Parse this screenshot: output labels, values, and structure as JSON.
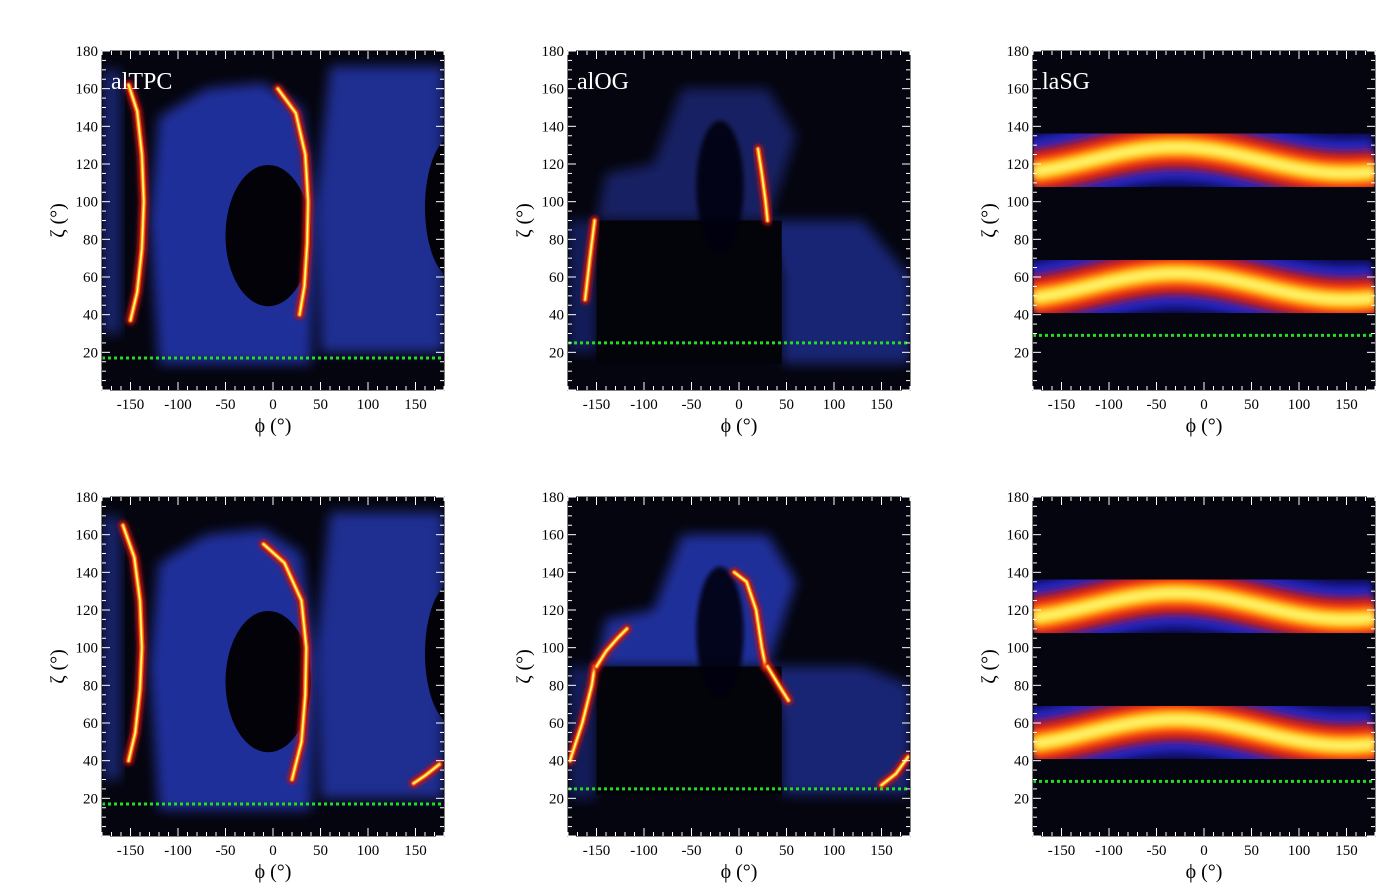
{
  "chart_data": [
    {
      "type": "heatmap",
      "title": "alTPC",
      "xlabel": "ϕ (°)",
      "ylabel": "ζ (°)",
      "xlim": [
        -180,
        180
      ],
      "ylim": [
        0,
        180
      ],
      "xticks": [
        -150,
        -100,
        -50,
        0,
        50,
        100,
        150
      ],
      "yticks": [
        20,
        40,
        60,
        80,
        100,
        120,
        140,
        160,
        180
      ],
      "colormap": "black-blue-red-yellow-white",
      "observer_line_zeta": 17,
      "observer_line_color": "#22dd22",
      "caustics": [
        {
          "x": [
            -150,
            -143,
            -138,
            -136,
            -138,
            -143,
            -152
          ],
          "y": [
            37,
            52,
            75,
            100,
            125,
            148,
            162
          ]
        },
        {
          "x": [
            28,
            33,
            36,
            37,
            34,
            24,
            5
          ],
          "y": [
            40,
            55,
            78,
            100,
            125,
            147,
            160
          ]
        }
      ]
    },
    {
      "type": "heatmap",
      "title": "alOG",
      "xlabel": "ϕ (°)",
      "ylabel": "ζ (°)",
      "xlim": [
        -180,
        180
      ],
      "ylim": [
        0,
        180
      ],
      "xticks": [
        -150,
        -100,
        -50,
        0,
        50,
        100,
        150
      ],
      "yticks": [
        20,
        40,
        60,
        80,
        100,
        120,
        140,
        160,
        180
      ],
      "colormap": "black-blue-red-yellow-white",
      "observer_line_zeta": 25,
      "observer_line_color": "#22dd22",
      "caustics": [
        {
          "x": [
            -162,
            -157,
            -152
          ],
          "y": [
            48,
            70,
            90
          ]
        },
        {
          "x": [
            20,
            24,
            28,
            30
          ],
          "y": [
            128,
            115,
            100,
            90
          ]
        }
      ]
    },
    {
      "type": "heatmap",
      "title": "laSG",
      "xlabel": "ϕ (°)",
      "ylabel": "ζ (°)",
      "xlim": [
        -180,
        180
      ],
      "ylim": [
        0,
        180
      ],
      "xticks": [
        -150,
        -100,
        -50,
        0,
        50,
        100,
        150
      ],
      "yticks": [
        20,
        40,
        60,
        80,
        100,
        120,
        140,
        160,
        180
      ],
      "colormap": "black-blue-red-yellow-white",
      "observer_line_zeta": 29,
      "observer_line_color": "#22dd22",
      "bands": [
        {
          "center_zeta": 55,
          "amplitude": 7,
          "phase_peak_phi": -30
        },
        {
          "center_zeta": 122,
          "amplitude": 7,
          "phase_peak_phi": -30
        }
      ]
    },
    {
      "type": "heatmap",
      "title": "",
      "xlabel": "ϕ (°)",
      "ylabel": "ζ (°)",
      "xlim": [
        -180,
        180
      ],
      "ylim": [
        0,
        180
      ],
      "xticks": [
        -150,
        -100,
        -50,
        0,
        50,
        100,
        150
      ],
      "yticks": [
        20,
        40,
        60,
        80,
        100,
        120,
        140,
        160,
        180
      ],
      "colormap": "black-blue-red-yellow-white",
      "observer_line_zeta": 17,
      "observer_line_color": "#22dd22",
      "caustics": [
        {
          "x": [
            -152,
            -145,
            -140,
            -138,
            -140,
            -146,
            -158
          ],
          "y": [
            40,
            55,
            78,
            100,
            125,
            148,
            165
          ]
        },
        {
          "x": [
            20,
            30,
            34,
            35,
            30,
            12,
            -10
          ],
          "y": [
            30,
            50,
            75,
            100,
            125,
            145,
            155
          ]
        },
        {
          "x": [
            148,
            160,
            175
          ],
          "y": [
            28,
            32,
            38
          ]
        }
      ]
    },
    {
      "type": "heatmap",
      "title": "",
      "xlabel": "ϕ (°)",
      "ylabel": "ζ (°)",
      "xlim": [
        -180,
        180
      ],
      "ylim": [
        0,
        180
      ],
      "xticks": [
        -150,
        -100,
        -50,
        0,
        50,
        100,
        150
      ],
      "yticks": [
        20,
        40,
        60,
        80,
        100,
        120,
        140,
        160,
        180
      ],
      "colormap": "black-blue-red-yellow-white",
      "observer_line_zeta": 25,
      "observer_line_color": "#22dd22",
      "caustics": [
        {
          "x": [
            -178,
            -165,
            -155,
            -152
          ],
          "y": [
            40,
            60,
            80,
            90
          ]
        },
        {
          "x": [
            -150,
            -140,
            -128,
            -118
          ],
          "y": [
            90,
            98,
            105,
            110
          ]
        },
        {
          "x": [
            -5,
            8,
            18,
            24,
            28
          ],
          "y": [
            140,
            135,
            120,
            100,
            90
          ]
        },
        {
          "x": [
            30,
            42,
            52
          ],
          "y": [
            90,
            80,
            72
          ]
        },
        {
          "x": [
            150,
            165,
            178
          ],
          "y": [
            27,
            33,
            42
          ]
        }
      ]
    },
    {
      "type": "heatmap",
      "title": "",
      "xlabel": "ϕ (°)",
      "ylabel": "ζ (°)",
      "xlim": [
        -180,
        180
      ],
      "ylim": [
        0,
        180
      ],
      "xticks": [
        -150,
        -100,
        -50,
        0,
        50,
        100,
        150
      ],
      "yticks": [
        20,
        40,
        60,
        80,
        100,
        120,
        140,
        160,
        180
      ],
      "colormap": "black-blue-red-yellow-white",
      "observer_line_zeta": 29,
      "observer_line_color": "#22dd22",
      "bands": [
        {
          "center_zeta": 55,
          "amplitude": 7,
          "phase_peak_phi": -30
        },
        {
          "center_zeta": 122,
          "amplitude": 7,
          "phase_peak_phi": -30
        }
      ]
    }
  ]
}
